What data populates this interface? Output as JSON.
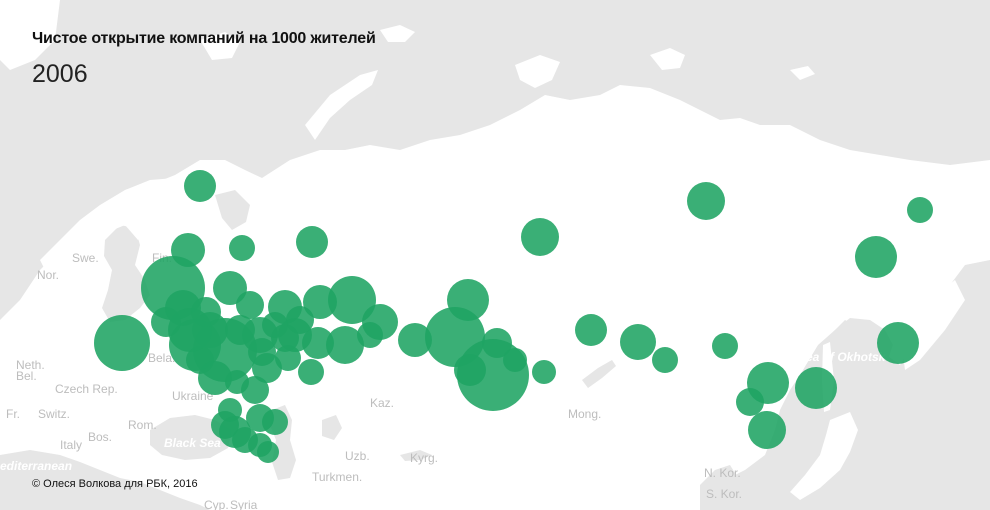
{
  "header": {
    "title": "Чистое открытие компаний на 1000 жителей",
    "year": "2006"
  },
  "footer": {
    "credit": "© Олеся Волкова для РБК, 2016"
  },
  "colors": {
    "bubble": "#1fa463",
    "land": "#ffffff",
    "water": "#e6e6e6",
    "label": "#bdbdbd"
  },
  "base_labels": [
    {
      "name": "label-nor",
      "text": "Nor."
    },
    {
      "name": "label-swe",
      "text": "Swe."
    },
    {
      "name": "label-fin",
      "text": "Fin."
    },
    {
      "name": "label-neth",
      "text": "Neth."
    },
    {
      "name": "label-bel",
      "text": "Bel."
    },
    {
      "name": "label-czech",
      "text": "Czech Rep."
    },
    {
      "name": "label-fr",
      "text": "Fr."
    },
    {
      "name": "label-switz",
      "text": "Switz."
    },
    {
      "name": "label-italy",
      "text": "Italy"
    },
    {
      "name": "label-bos",
      "text": "Bos."
    },
    {
      "name": "label-rom",
      "text": "Rom."
    },
    {
      "name": "label-ukraine",
      "text": "Ukraine"
    },
    {
      "name": "label-belarus",
      "text": "Bela."
    },
    {
      "name": "label-kaz",
      "text": "Kaz."
    },
    {
      "name": "label-uzb",
      "text": "Uzb."
    },
    {
      "name": "label-kyrg",
      "text": "Kyrg."
    },
    {
      "name": "label-turkmen",
      "text": "Turkmen."
    },
    {
      "name": "label-mong",
      "text": "Mong."
    },
    {
      "name": "label-nkor",
      "text": "N. Kor."
    },
    {
      "name": "label-skor",
      "text": "S. Kor."
    },
    {
      "name": "label-syria",
      "text": "Syria"
    },
    {
      "name": "label-cyp",
      "text": "Cyp."
    }
  ],
  "sea_labels": [
    {
      "name": "label-black-sea",
      "text": "Black Sea"
    },
    {
      "name": "label-mediterranean",
      "text": "editerranean"
    },
    {
      "name": "label-okhotsk",
      "text": "Sea of Okhotsk"
    }
  ]
}
